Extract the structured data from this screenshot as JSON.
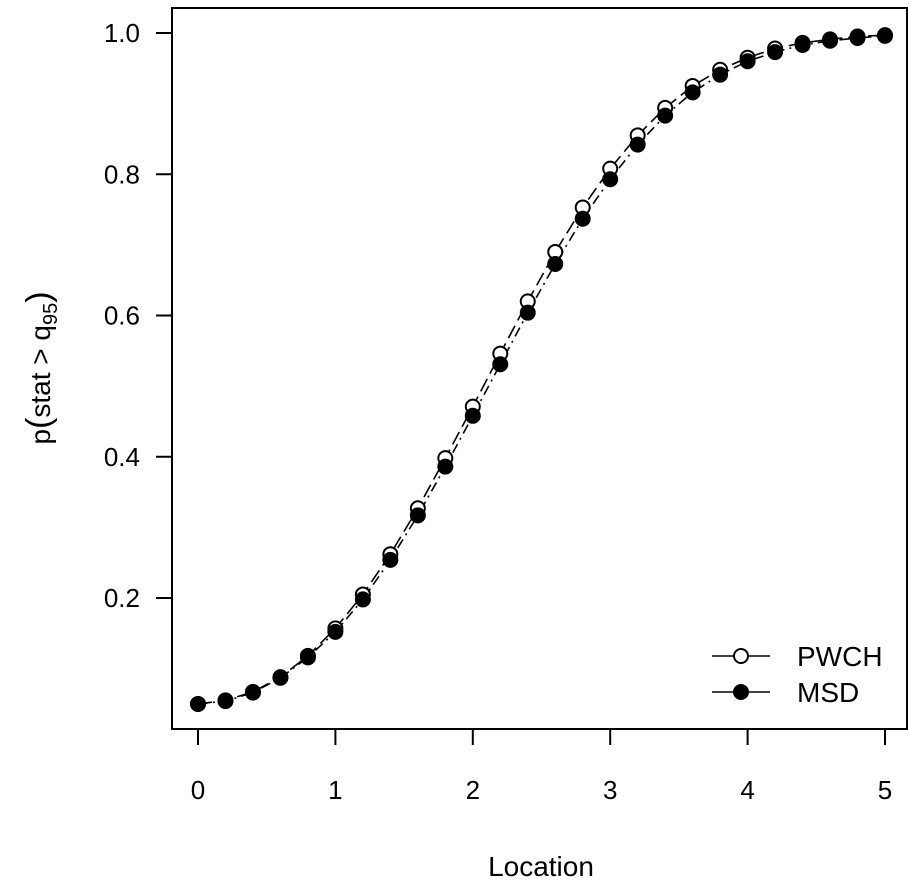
{
  "chart_data": {
    "type": "scatter",
    "xlabel": "Location",
    "ylabel": {
      "prefix": "p",
      "open": "(",
      "body": "stat > q",
      "subscript": "95",
      "close": ")"
    },
    "xlim": [
      0,
      5
    ],
    "ylim": [
      0.05,
      1.0
    ],
    "x_ticks": [
      "0",
      "1",
      "2",
      "3",
      "4",
      "5"
    ],
    "y_ticks": [
      "0.2",
      "0.4",
      "0.6",
      "0.8",
      "1.0"
    ],
    "grid": false,
    "legend_position": "bottom-right",
    "x": [
      0,
      0.2,
      0.4,
      0.6,
      0.8,
      1.0,
      1.2,
      1.4,
      1.6,
      1.8,
      2.0,
      2.2,
      2.4,
      2.6,
      2.8,
      3.0,
      3.2,
      3.4,
      3.6,
      3.8,
      4.0,
      4.2,
      4.4,
      4.6,
      4.8,
      5.0
    ],
    "series": [
      {
        "name": "PWCH",
        "marker": "open-circle",
        "line": "long-dash",
        "color": "#000000",
        "values": [
          0.05,
          0.055,
          0.067,
          0.088,
          0.118,
          0.157,
          0.205,
          0.262,
          0.327,
          0.398,
          0.471,
          0.546,
          0.62,
          0.69,
          0.753,
          0.808,
          0.855,
          0.894,
          0.925,
          0.948,
          0.965,
          0.978,
          0.986,
          0.991,
          0.995,
          0.997
        ]
      },
      {
        "name": "MSD",
        "marker": "filled-circle",
        "line": "dash-dot",
        "color": "#000000",
        "values": [
          0.05,
          0.054,
          0.066,
          0.087,
          0.116,
          0.152,
          0.198,
          0.254,
          0.317,
          0.386,
          0.458,
          0.531,
          0.604,
          0.673,
          0.737,
          0.793,
          0.842,
          0.883,
          0.916,
          0.941,
          0.96,
          0.973,
          0.983,
          0.989,
          0.993,
          0.996
        ]
      }
    ]
  }
}
